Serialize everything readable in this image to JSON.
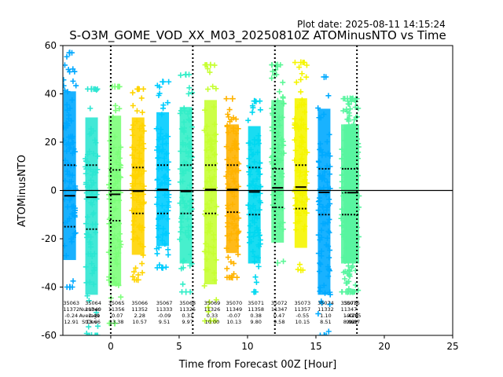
{
  "plot_date": "Plot date: 2025-08-11 14:15:24",
  "chart_data": {
    "type": "scatter",
    "title": "S-O3M_GOME_VOD_XX_M03_20250810Z ATOMinusNTO vs Time",
    "xlabel": "Time from Forecast 00Z [Hour]",
    "ylabel": "ATOMinusNTO",
    "xlim": [
      -3.5,
      25
    ],
    "ylim": [
      -60,
      60
    ],
    "xticks": [
      0,
      5,
      10,
      15,
      20,
      25
    ],
    "yticks": [
      -60,
      -40,
      -20,
      0,
      20,
      40,
      60
    ],
    "grid": false,
    "zero_line": 0,
    "vlines": [
      0,
      6,
      12,
      18
    ],
    "stats_row_labels": [
      "",
      "Number",
      "Average",
      "StDev"
    ],
    "orbits": [
      {
        "x": -3.0,
        "orbit": "35063",
        "number": "11372",
        "average": "-0.24",
        "stdev": "12.91",
        "color": "#00a8ff",
        "ymin": -40,
        "ymax": 57,
        "mean": -2.2,
        "p_hi": 10.5,
        "p_lo": -15.0
      },
      {
        "x": -1.4,
        "orbit": "35064",
        "number": "11349",
        "average": "-2.49",
        "stdev": "13.66",
        "color": "#2de6d2",
        "ymin": -60,
        "ymax": 42,
        "mean": -2.8,
        "p_hi": 10.5,
        "p_lo": -16.0
      },
      {
        "x": 0.3,
        "orbit": "35065",
        "number": "11356",
        "average": "-0.07",
        "stdev": "13.38",
        "color": "#7dff7a",
        "ymin": -55,
        "ymax": 43,
        "mean": -1.6,
        "p_hi": 8.5,
        "p_lo": -12.5
      },
      {
        "x": 2.0,
        "orbit": "35066",
        "number": "11352",
        "average": "2.28",
        "stdev": "10.57",
        "color": "#ffd400",
        "ymin": -37,
        "ymax": 42,
        "mean": -0.3,
        "p_hi": 9.5,
        "p_lo": -9.5
      },
      {
        "x": 3.8,
        "orbit": "35067",
        "number": "11333",
        "average": "-0.09",
        "stdev": "9.51",
        "color": "#00ccff",
        "ymin": -32,
        "ymax": 45,
        "mean": 0.4,
        "p_hi": 10.5,
        "p_lo": -9.5
      },
      {
        "x": 5.5,
        "orbit": "35068",
        "number": "11325",
        "average": "0.31",
        "stdev": "9.97",
        "color": "#33eec8",
        "ymin": -42,
        "ymax": 48,
        "mean": -0.4,
        "p_hi": 10.5,
        "p_lo": -9.5
      },
      {
        "x": 7.3,
        "orbit": "35069",
        "number": "11326",
        "average": "0.33",
        "stdev": "10.00",
        "color": "#c6ff32",
        "ymin": -54,
        "ymax": 52,
        "mean": 0.4,
        "p_hi": 10.5,
        "p_lo": -9.5
      },
      {
        "x": 8.9,
        "orbit": "35070",
        "number": "11349",
        "average": "-0.07",
        "stdev": "10.13",
        "color": "#ffb300",
        "ymin": -36,
        "ymax": 38,
        "mean": 0.4,
        "p_hi": 10.5,
        "p_lo": -9.0
      },
      {
        "x": 10.5,
        "orbit": "35071",
        "number": "11358",
        "average": "0.38",
        "stdev": "9.80",
        "color": "#00d8f0",
        "ymin": -42,
        "ymax": 37,
        "mean": -0.6,
        "p_hi": 9.5,
        "p_lo": -10.0
      },
      {
        "x": 12.2,
        "orbit": "35072",
        "number": "11347",
        "average": "0.47",
        "stdev": "9.58",
        "color": "#5cf797",
        "ymin": -30,
        "ymax": 52,
        "mean": 1.1,
        "p_hi": 9.0,
        "p_lo": -7.0
      },
      {
        "x": 13.9,
        "orbit": "35073",
        "number": "11357",
        "average": "-0.55",
        "stdev": "10.15",
        "color": "#f5f500",
        "ymin": -33,
        "ymax": 53,
        "mean": 1.4,
        "p_hi": 10.5,
        "p_lo": -7.5
      },
      {
        "x": 15.6,
        "orbit": "35074",
        "number": "11332",
        "average": "1.10",
        "stdev": "8.51",
        "color": "#00aaff",
        "ymin": -60,
        "ymax": 47,
        "mean": -0.8,
        "p_hi": 9.0,
        "p_lo": -10.0
      },
      {
        "x": 17.3,
        "orbit": "35075",
        "number": "11347",
        "average": "1.42",
        "stdev": "8.92",
        "color": "#58f5a0",
        "ymin": -42,
        "ymax": 38,
        "mean": -0.9,
        "p_hi": 9.0,
        "p_lo": -10.0
      },
      {
        "x": 17.5,
        "orbit": "35076",
        "number": "",
        "average": "-0.78",
        "stdev": "9.61",
        "color": "#58f5a0",
        "ymin": -42,
        "ymax": 38,
        "mean": -0.9,
        "p_hi": 9.0,
        "p_lo": -10.0
      },
      {
        "x": 17.7,
        "orbit": "",
        "number": "",
        "average": "-0.85",
        "stdev": "9.87",
        "color": "#58f5a0",
        "ymin": -42,
        "ymax": 38,
        "mean": -0.9,
        "p_hi": 9.0,
        "p_lo": -10.0
      }
    ]
  }
}
